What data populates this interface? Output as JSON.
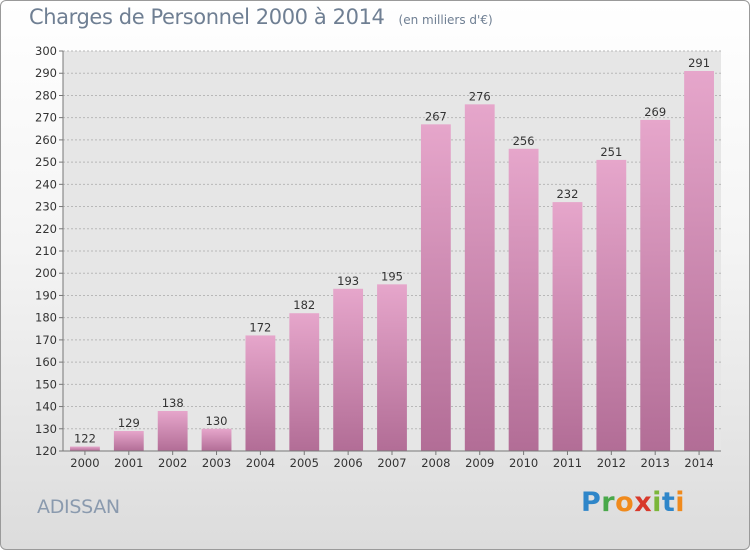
{
  "header": {
    "title": "Charges de Personnel 2000 à 2014",
    "subtitle": "(en milliers d'€)"
  },
  "footer": {
    "town": "ADISSAN",
    "logo": "Proxiti",
    "logo_letters": [
      "P",
      "r",
      "o",
      "x",
      "i",
      "t",
      "i"
    ]
  },
  "colors": {
    "bar_top": "#e6a6cb",
    "bar_bottom": "#b26d96",
    "grid": "#b8b8b8",
    "text": "#333333",
    "title": "#6f7f93"
  },
  "chart_data": {
    "type": "bar",
    "title": "Charges de Personnel 2000 à 2014",
    "subtitle": "(en milliers d'€)",
    "categories": [
      "2000",
      "2001",
      "2002",
      "2003",
      "2004",
      "2005",
      "2006",
      "2007",
      "2008",
      "2009",
      "2010",
      "2011",
      "2012",
      "2013",
      "2014"
    ],
    "values": [
      122,
      129,
      138,
      130,
      172,
      182,
      193,
      195,
      267,
      276,
      256,
      232,
      251,
      269,
      291
    ],
    "ylim": [
      120,
      300
    ],
    "ytick_step": 10,
    "grid": true,
    "data_labels": true
  }
}
